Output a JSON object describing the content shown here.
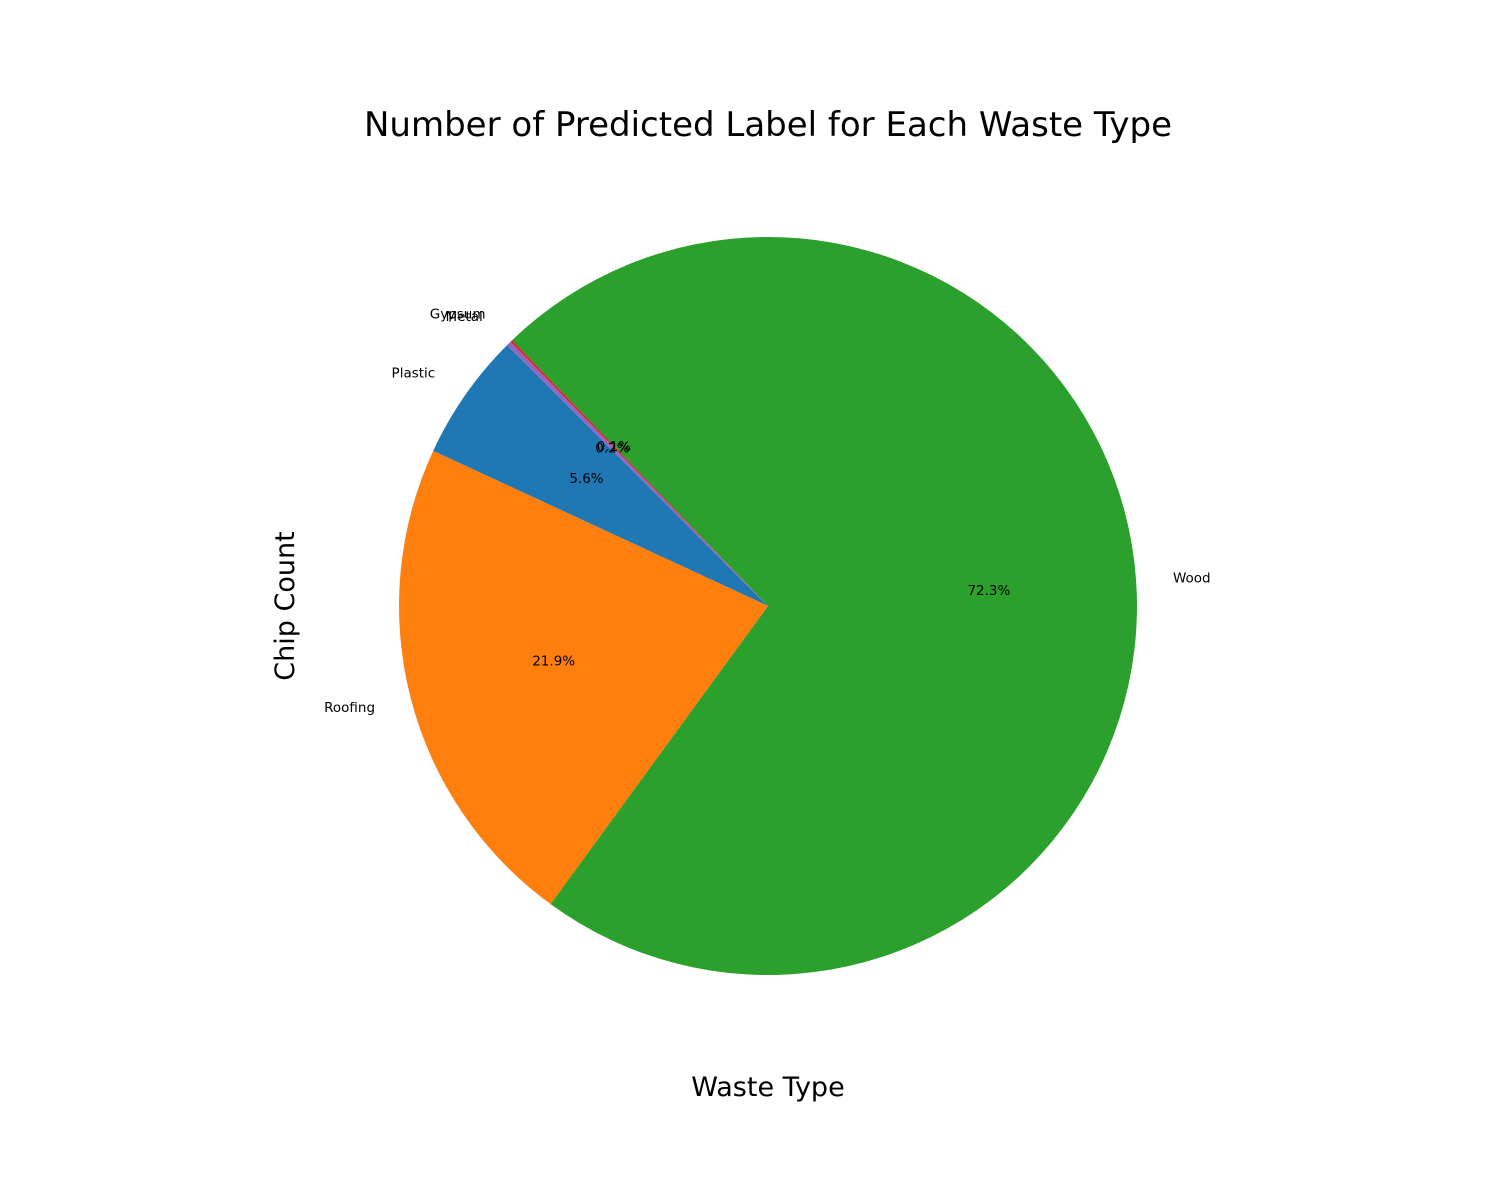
{
  "chart_data": {
    "type": "pie",
    "title": "Number of Predicted Label for Each Waste Type",
    "xlabel": "Waste Type",
    "ylabel": "Chip Count",
    "start_angle_deg": 135,
    "direction": "counterclockwise",
    "slices": [
      {
        "label": "Plastic",
        "value": 5.6,
        "pct_label": "5.6%",
        "color": "#1f77b4"
      },
      {
        "label": "Roofing",
        "value": 21.9,
        "pct_label": "21.9%",
        "color": "#ff7f0e"
      },
      {
        "label": "Wood",
        "value": 72.3,
        "pct_label": "72.3%",
        "color": "#2ca02c"
      },
      {
        "label": "Gypsum",
        "value": 0.1,
        "pct_label": "0.1%",
        "color": "#d62728"
      },
      {
        "label": "Metal",
        "value": 0.2,
        "pct_label": "0.2%",
        "color": "#9467bd"
      }
    ]
  }
}
